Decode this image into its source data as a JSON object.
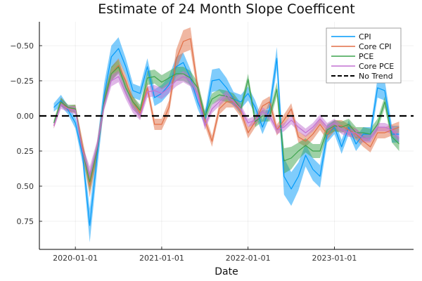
{
  "chart_data": {
    "type": "line",
    "title": "Estimate of 24 Month Slope Coefficent",
    "xlabel": "Date",
    "ylabel": "",
    "x_ticks": [
      "2020-01-01",
      "2021-01-01",
      "2022-01-01",
      "2023-01-01"
    ],
    "y_ticks": [
      "−0.50",
      "−0.25",
      "0.00",
      "0.25",
      "0.50",
      "0.75"
    ],
    "y_tick_values": [
      -0.5,
      -0.25,
      0,
      0.25,
      0.5,
      0.75
    ],
    "ylim": [
      0.95,
      -0.67
    ],
    "y_axis_inverted": true,
    "grid": true,
    "legend_position": "top-right",
    "x": [
      "2019-10",
      "2019-11",
      "2019-12",
      "2020-01",
      "2020-02",
      "2020-03",
      "2020-04",
      "2020-05",
      "2020-06",
      "2020-07",
      "2020-08",
      "2020-09",
      "2020-10",
      "2020-11",
      "2020-12",
      "2021-01",
      "2021-02",
      "2021-03",
      "2021-04",
      "2021-05",
      "2021-06",
      "2021-07",
      "2021-08",
      "2021-09",
      "2021-10",
      "2021-11",
      "2021-12",
      "2022-01",
      "2022-02",
      "2022-03",
      "2022-04",
      "2022-05",
      "2022-06",
      "2022-07",
      "2022-08",
      "2022-09",
      "2022-10",
      "2022-11",
      "2022-12",
      "2023-01",
      "2023-02",
      "2023-03",
      "2023-04",
      "2023-05",
      "2023-06",
      "2023-07",
      "2023-08",
      "2023-09",
      "2023-10"
    ],
    "series": [
      {
        "name": "CPI",
        "color": "#009AFA",
        "values": [
          -0.06,
          -0.11,
          -0.04,
          0.05,
          0.28,
          0.78,
          0.3,
          -0.15,
          -0.42,
          -0.48,
          -0.35,
          -0.18,
          -0.16,
          -0.35,
          -0.13,
          -0.16,
          -0.22,
          -0.35,
          -0.38,
          -0.27,
          -0.1,
          0.02,
          -0.25,
          -0.26,
          -0.2,
          -0.12,
          -0.1,
          -0.16,
          -0.06,
          0.08,
          -0.05,
          -0.41,
          0.43,
          0.52,
          0.43,
          0.28,
          0.38,
          0.43,
          0.13,
          0.08,
          0.22,
          0.08,
          0.2,
          0.13,
          0.13,
          -0.2,
          -0.18,
          0.13,
          0.13
        ],
        "band": [
          0.03,
          0.04,
          0.03,
          0.04,
          0.06,
          0.12,
          0.1,
          0.08,
          0.08,
          0.08,
          0.06,
          0.05,
          0.05,
          0.06,
          0.06,
          0.06,
          0.06,
          0.07,
          0.07,
          0.06,
          0.05,
          0.05,
          0.08,
          0.08,
          0.07,
          0.05,
          0.05,
          0.05,
          0.05,
          0.05,
          0.06,
          0.08,
          0.13,
          0.12,
          0.1,
          0.08,
          0.08,
          0.08,
          0.06,
          0.05,
          0.05,
          0.05,
          0.05,
          0.05,
          0.05,
          0.07,
          0.07,
          0.06,
          0.06
        ]
      },
      {
        "name": "Core CPI",
        "color": "#E26F46",
        "values": [
          0.07,
          -0.1,
          -0.05,
          -0.05,
          0.22,
          0.5,
          0.25,
          -0.1,
          -0.3,
          -0.36,
          -0.25,
          -0.1,
          -0.02,
          -0.2,
          0.06,
          0.06,
          -0.06,
          -0.4,
          -0.53,
          -0.55,
          -0.2,
          0.03,
          0.18,
          -0.05,
          -0.1,
          -0.1,
          -0.03,
          0.12,
          0.04,
          -0.07,
          -0.1,
          0.1,
          0.03,
          -0.05,
          0.15,
          0.18,
          0.13,
          0.06,
          0.13,
          0.07,
          0.07,
          0.1,
          0.13,
          0.18,
          0.22,
          0.12,
          0.12,
          0.1,
          0.08
        ],
        "band": [
          0.02,
          0.03,
          0.02,
          0.03,
          0.05,
          0.08,
          0.06,
          0.05,
          0.05,
          0.05,
          0.04,
          0.04,
          0.04,
          0.04,
          0.04,
          0.04,
          0.05,
          0.07,
          0.08,
          0.08,
          0.05,
          0.04,
          0.04,
          0.04,
          0.04,
          0.04,
          0.04,
          0.04,
          0.04,
          0.04,
          0.04,
          0.04,
          0.04,
          0.04,
          0.04,
          0.04,
          0.04,
          0.04,
          0.04,
          0.04,
          0.04,
          0.04,
          0.04,
          0.04,
          0.04,
          0.04,
          0.04,
          0.04,
          0.04
        ]
      },
      {
        "name": "PCE",
        "color": "#3DA44D",
        "values": [
          0.05,
          -0.1,
          -0.06,
          -0.05,
          0.25,
          0.47,
          0.25,
          -0.1,
          -0.3,
          -0.35,
          -0.2,
          -0.1,
          -0.04,
          -0.27,
          -0.28,
          -0.24,
          -0.27,
          -0.3,
          -0.3,
          -0.27,
          -0.2,
          0.0,
          -0.12,
          -0.15,
          -0.14,
          -0.12,
          -0.05,
          -0.26,
          0.04,
          0.0,
          0.0,
          -0.19,
          0.32,
          0.3,
          0.25,
          0.21,
          0.25,
          0.25,
          0.1,
          0.07,
          0.08,
          0.06,
          0.12,
          0.12,
          0.13,
          0.06,
          -0.1,
          0.15,
          0.2
        ],
        "band": [
          0.02,
          0.03,
          0.02,
          0.03,
          0.05,
          0.07,
          0.05,
          0.05,
          0.05,
          0.05,
          0.04,
          0.04,
          0.04,
          0.05,
          0.05,
          0.05,
          0.05,
          0.05,
          0.05,
          0.05,
          0.04,
          0.04,
          0.04,
          0.04,
          0.04,
          0.04,
          0.04,
          0.04,
          0.04,
          0.04,
          0.04,
          0.05,
          0.09,
          0.08,
          0.06,
          0.05,
          0.05,
          0.05,
          0.04,
          0.04,
          0.04,
          0.04,
          0.04,
          0.04,
          0.04,
          0.04,
          0.04,
          0.04,
          0.05
        ]
      },
      {
        "name": "Core PCE",
        "color": "#C271D2",
        "values": [
          0.07,
          -0.08,
          -0.05,
          -0.04,
          0.25,
          0.42,
          0.23,
          -0.08,
          -0.25,
          -0.28,
          -0.16,
          -0.05,
          0.0,
          -0.17,
          -0.18,
          -0.16,
          -0.2,
          -0.25,
          -0.28,
          -0.25,
          -0.15,
          0.07,
          -0.05,
          -0.1,
          -0.15,
          -0.1,
          -0.05,
          0.05,
          0.03,
          -0.03,
          0.0,
          0.1,
          0.08,
          0.03,
          0.08,
          0.12,
          0.08,
          0.02,
          0.08,
          0.05,
          0.1,
          0.12,
          0.12,
          0.16,
          0.16,
          0.08,
          0.08,
          0.1,
          0.16
        ],
        "band": [
          0.02,
          0.03,
          0.02,
          0.03,
          0.04,
          0.06,
          0.05,
          0.04,
          0.04,
          0.04,
          0.04,
          0.03,
          0.03,
          0.04,
          0.04,
          0.04,
          0.04,
          0.04,
          0.04,
          0.04,
          0.04,
          0.03,
          0.03,
          0.03,
          0.03,
          0.03,
          0.03,
          0.03,
          0.03,
          0.03,
          0.03,
          0.03,
          0.03,
          0.03,
          0.03,
          0.03,
          0.03,
          0.03,
          0.03,
          0.03,
          0.03,
          0.03,
          0.03,
          0.03,
          0.03,
          0.03,
          0.03,
          0.03,
          0.03
        ]
      }
    ],
    "reference_line": {
      "name": "No Trend",
      "value": 0,
      "color": "#000000",
      "style": "dashed"
    }
  }
}
